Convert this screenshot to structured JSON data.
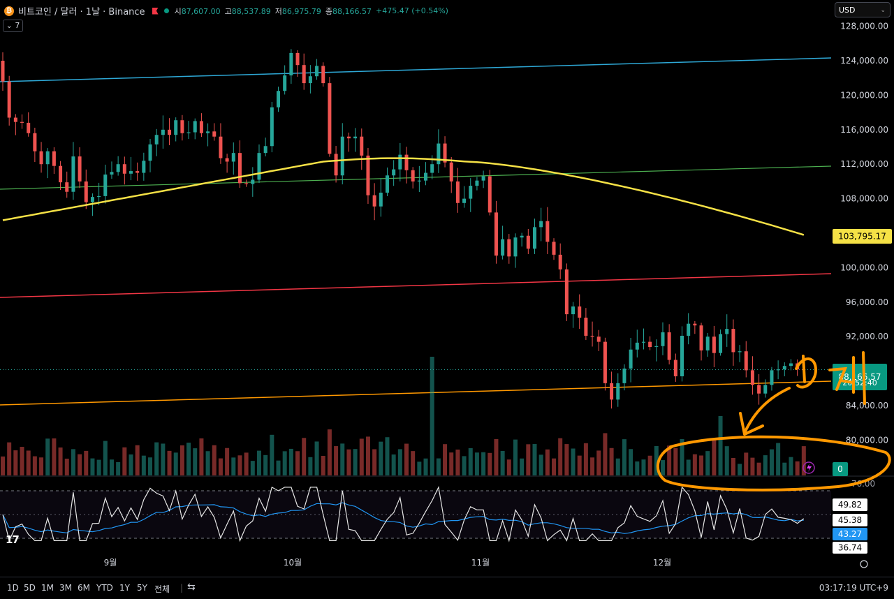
{
  "header": {
    "symbol": "비트코인 / 달러 · 1날 · Binance",
    "open_label": "시",
    "open": "87,607.00",
    "high_label": "고",
    "high": "88,537.89",
    "low_label": "저",
    "low": "86,975.79",
    "close_label": "종",
    "close": "88,166.57",
    "change": "+475.47 (+0.54%)",
    "collapse_label": "7"
  },
  "currency": "USD",
  "price_axis_labels": [
    "128,000.00",
    "124,000.00",
    "120,000.00",
    "116,000.00",
    "112,000.00",
    "108,000.00",
    "100,000.00",
    "96,000.00",
    "92,000.00",
    "84,000.00",
    "80,000.00"
  ],
  "badges": {
    "ma": "103,795.17",
    "price": "88,166.57",
    "countdown": "20:52:40",
    "volume": "0",
    "axis_partial": "76.00"
  },
  "rsi": {
    "labels": [
      "49.82",
      "45.38",
      "43.27",
      "36.74"
    ]
  },
  "months": [
    "9월",
    "10월",
    "11월",
    "12월"
  ],
  "annotation": {
    "text": "15개"
  },
  "bottom": {
    "periods": [
      "1D",
      "5D",
      "1M",
      "3M",
      "6M",
      "YTD",
      "1Y",
      "5Y",
      "전체"
    ],
    "time": "03:17:19 UTC+9"
  },
  "colors": {
    "up": "#26a69a",
    "down": "#ef5350",
    "ma": "#f5e146",
    "rsi": "#e6e6e6",
    "rsi_ma": "#2196f3",
    "orange": "#ff9800"
  },
  "chart_data": {
    "type": "candlestick",
    "x_start": "2025-08-18",
    "x_end": "2025-12-24",
    "ylim": [
      76000,
      130000
    ],
    "note_values": "daily candles approximated from the chart",
    "closes": [
      121600,
      117400,
      116900,
      116800,
      115600,
      113500,
      112000,
      113500,
      111800,
      109900,
      108800,
      112900,
      110000,
      107600,
      108200,
      108300,
      110800,
      111100,
      112000,
      110900,
      111200,
      111000,
      112400,
      114300,
      115400,
      116000,
      115400,
      117100,
      115600,
      115700,
      117000,
      115600,
      115800,
      115200,
      112700,
      112300,
      113300,
      109800,
      109700,
      110200,
      113300,
      114100,
      118600,
      120500,
      122300,
      124900,
      123500,
      121400,
      122200,
      123400,
      121400,
      113200,
      110700,
      115200,
      115000,
      115200,
      113000,
      108400,
      107100,
      108700,
      110700,
      111400,
      113100,
      111300,
      110000,
      110100,
      111000,
      112000,
      114400,
      112200,
      110000,
      107500,
      108000,
      109500,
      110100,
      110600,
      106400,
      101400,
      103300,
      101300,
      103500,
      103700,
      102200,
      104700,
      105400,
      103000,
      101500,
      99800,
      94600,
      95500,
      94200,
      92100,
      92000,
      91400,
      86600,
      84700,
      86600,
      88300,
      90500,
      91300,
      91400,
      90800,
      90900,
      92500,
      89300,
      87400,
      92100,
      93500,
      93300,
      90400,
      92000,
      90100,
      92300,
      92900,
      90200,
      90300,
      88100,
      86400,
      85400,
      86400,
      88100,
      88200,
      88600,
      88900,
      88200,
      88166
    ]
  }
}
